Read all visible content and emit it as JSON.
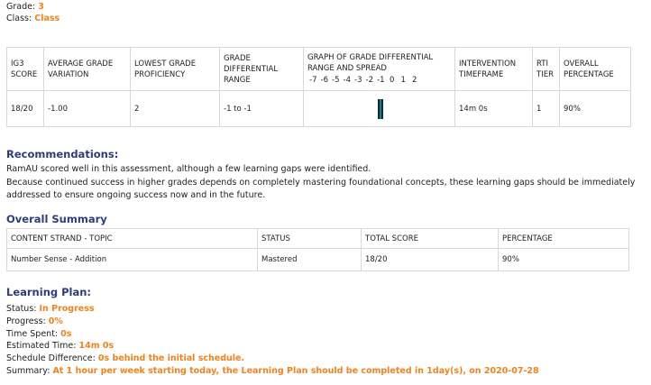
{
  "header": {
    "grade_label": "Grade:",
    "grade_value": "3",
    "class_label": "Class:",
    "class_value": "Class"
  },
  "diff_table": {
    "headers": {
      "score": "IG3 SCORE",
      "avg_variation": "AVERAGE GRADE VARIATION",
      "lowest": "LOWEST GRADE PROFICIENCY",
      "range": "GRADE DIFFERENTIAL RANGE",
      "graph_title": "GRAPH OF GRADE DIFFERENTIAL RANGE AND SPREAD",
      "timeframe": "INTERVENTION TIMEFRAME",
      "tier": "RTI TIER",
      "overall": "OVERALL PERCENTAGE"
    },
    "axis_ticks": [
      "-7",
      "-6",
      "-5",
      "-4",
      "-3",
      "-2",
      "-1",
      "0",
      "1",
      "2"
    ],
    "row": {
      "score": "18/20",
      "avg_variation": "-1.00",
      "lowest": "2",
      "range": "-1 to -1",
      "timeframe": "14m 0s",
      "tier": "1",
      "overall": "90%"
    },
    "graph_range": {
      "min": -1,
      "max": -1,
      "color": "#177a84"
    }
  },
  "recommendations": {
    "title": "Recommendations:",
    "line1": "RamAU scored well in this assessment, although a few learning gaps were identified.",
    "line2": "Because continued success in higher grades depends on completely mastering foundational concepts, these learning gaps should be immediately addressed to ensure ongoing success now and in the future."
  },
  "overall_summary": {
    "title": "Overall Summary",
    "headers": [
      "CONTENT STRAND - TOPIC",
      "STATUS",
      "TOTAL SCORE",
      "PERCENTAGE"
    ],
    "rows": [
      [
        "Number Sense - Addition",
        "Mastered",
        "18/20",
        "90%"
      ]
    ]
  },
  "learning_plan": {
    "title": "Learning Plan:",
    "status_label": "Status:",
    "status_value": "In Progress",
    "progress_label": "Progress:",
    "progress_value": "0%",
    "time_spent_label": "Time Spent:",
    "time_spent_value": "0s",
    "estimated_label": "Estimated Time:",
    "estimated_value": "14m 0s",
    "schedule_label": "Schedule Difference:",
    "schedule_value": "0s behind the initial schedule.",
    "summary_label": "Summary:",
    "summary_value": "At 1 hour per week starting today, the Learning Plan should be completed in 1day(s), on 2020-07-28"
  },
  "colors": {
    "accent": "#f0831e",
    "heading": "#2e3c7d",
    "graph_bar": "#177a84"
  }
}
